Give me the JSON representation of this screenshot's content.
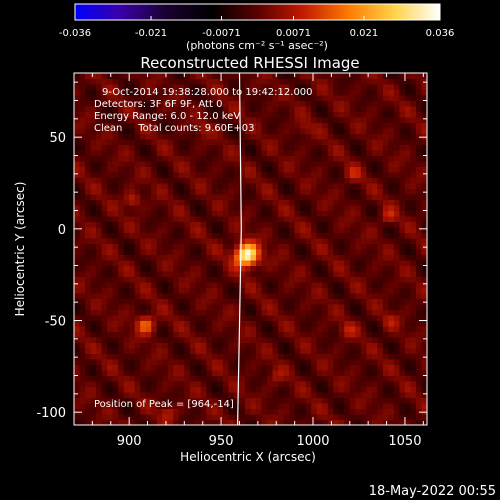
{
  "chart_data": {
    "type": "heatmap",
    "title": "Reconstructed RHESSI Image",
    "xlabel": "Heliocentric X (arcsec)",
    "ylabel": "Heliocentric Y (arcsec)",
    "xlim": [
      870,
      1062
    ],
    "ylim": [
      -107,
      85
    ],
    "x_ticks": [
      900,
      950,
      1000,
      1050
    ],
    "y_ticks": [
      -100,
      -50,
      0,
      50
    ],
    "colorbar": {
      "range": [
        -0.036,
        0.036
      ],
      "tick_values": [
        -0.036,
        -0.021,
        -0.0071,
        0.0071,
        0.021,
        0.036
      ],
      "tick_labels": [
        "-0.036",
        "-0.021",
        "-0.0071",
        "0.0071",
        "0.021",
        "0.036"
      ],
      "unit_label": "(photons cm⁻² s⁻¹ asec⁻²)",
      "colors": [
        "#0000ff",
        "#3a00a8",
        "#1a0030",
        "#000000",
        "#5a0000",
        "#c21a00",
        "#ff7a00",
        "#ffd34a",
        "#ffffff"
      ]
    },
    "annotations": [
      "9-Oct-2014 19:38:28.000 to 19:42:12.000",
      "Detectors: 3F 6F 9F, Att 0",
      "Energy Range: 6.0 - 12.0 keV",
      "Clean     Total counts: 9.60E+03"
    ],
    "peak_label": "Position of Peak = [964,-14]",
    "peak": {
      "x": 964,
      "y": -14,
      "value": 0.036
    },
    "limb_x_at_y": [
      [
        -107,
        959
      ],
      [
        0,
        961
      ],
      [
        85,
        960
      ]
    ],
    "sources": [
      {
        "x": 964,
        "y": -14,
        "value": 0.036,
        "sigma": 4.5
      },
      {
        "x": 909,
        "y": -52,
        "value": 0.016,
        "sigma": 3.6
      },
      {
        "x": 902,
        "y": 16,
        "value": 0.01,
        "sigma": 3.0
      },
      {
        "x": 921,
        "y": -100,
        "value": 0.008,
        "sigma": 3.0
      },
      {
        "x": 1041,
        "y": 7,
        "value": 0.008,
        "sigma": 3.0
      },
      {
        "x": 1019,
        "y": -55,
        "value": 0.007,
        "sigma": 3.0
      },
      {
        "x": 1022,
        "y": 30,
        "value": 0.007,
        "sigma": 3.0
      },
      {
        "x": 1042,
        "y": -50,
        "value": 0.006,
        "sigma": 3.0
      },
      {
        "x": 995,
        "y": 55,
        "value": 0.005,
        "sigma": 3.0
      },
      {
        "x": 940,
        "y": 55,
        "value": 0.005,
        "sigma": 3.0
      },
      {
        "x": 980,
        "y": -80,
        "value": 0.005,
        "sigma": 3.0
      }
    ]
  },
  "footer": {
    "timestamp": "18-May-2022 00:55"
  }
}
